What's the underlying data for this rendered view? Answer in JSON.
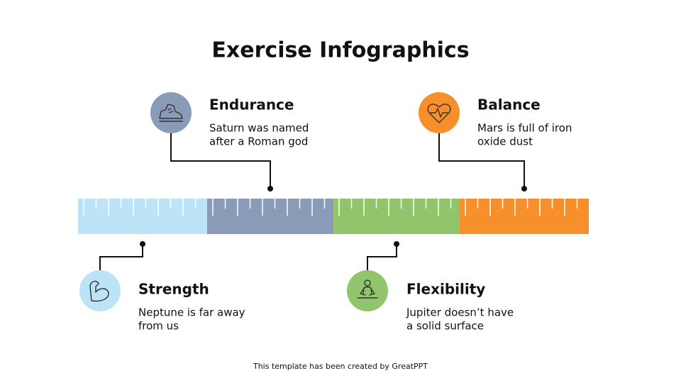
{
  "header": {
    "title": "Exercise Infographics"
  },
  "items": [
    {
      "title": "Endurance",
      "description": [
        "Saturn was named",
        "after a Roman god"
      ]
    },
    {
      "title": "Balance",
      "description": [
        "Mars is full of iron",
        "oxide dust"
      ]
    },
    {
      "title": "Strength",
      "description": [
        "Neptune is far away",
        "from us"
      ]
    },
    {
      "title": "Flexibility",
      "description": [
        "Jupiter doesn’t have",
        "a solid surface"
      ]
    }
  ],
  "footer": {
    "text": "This template has been created by GreatPPT"
  }
}
